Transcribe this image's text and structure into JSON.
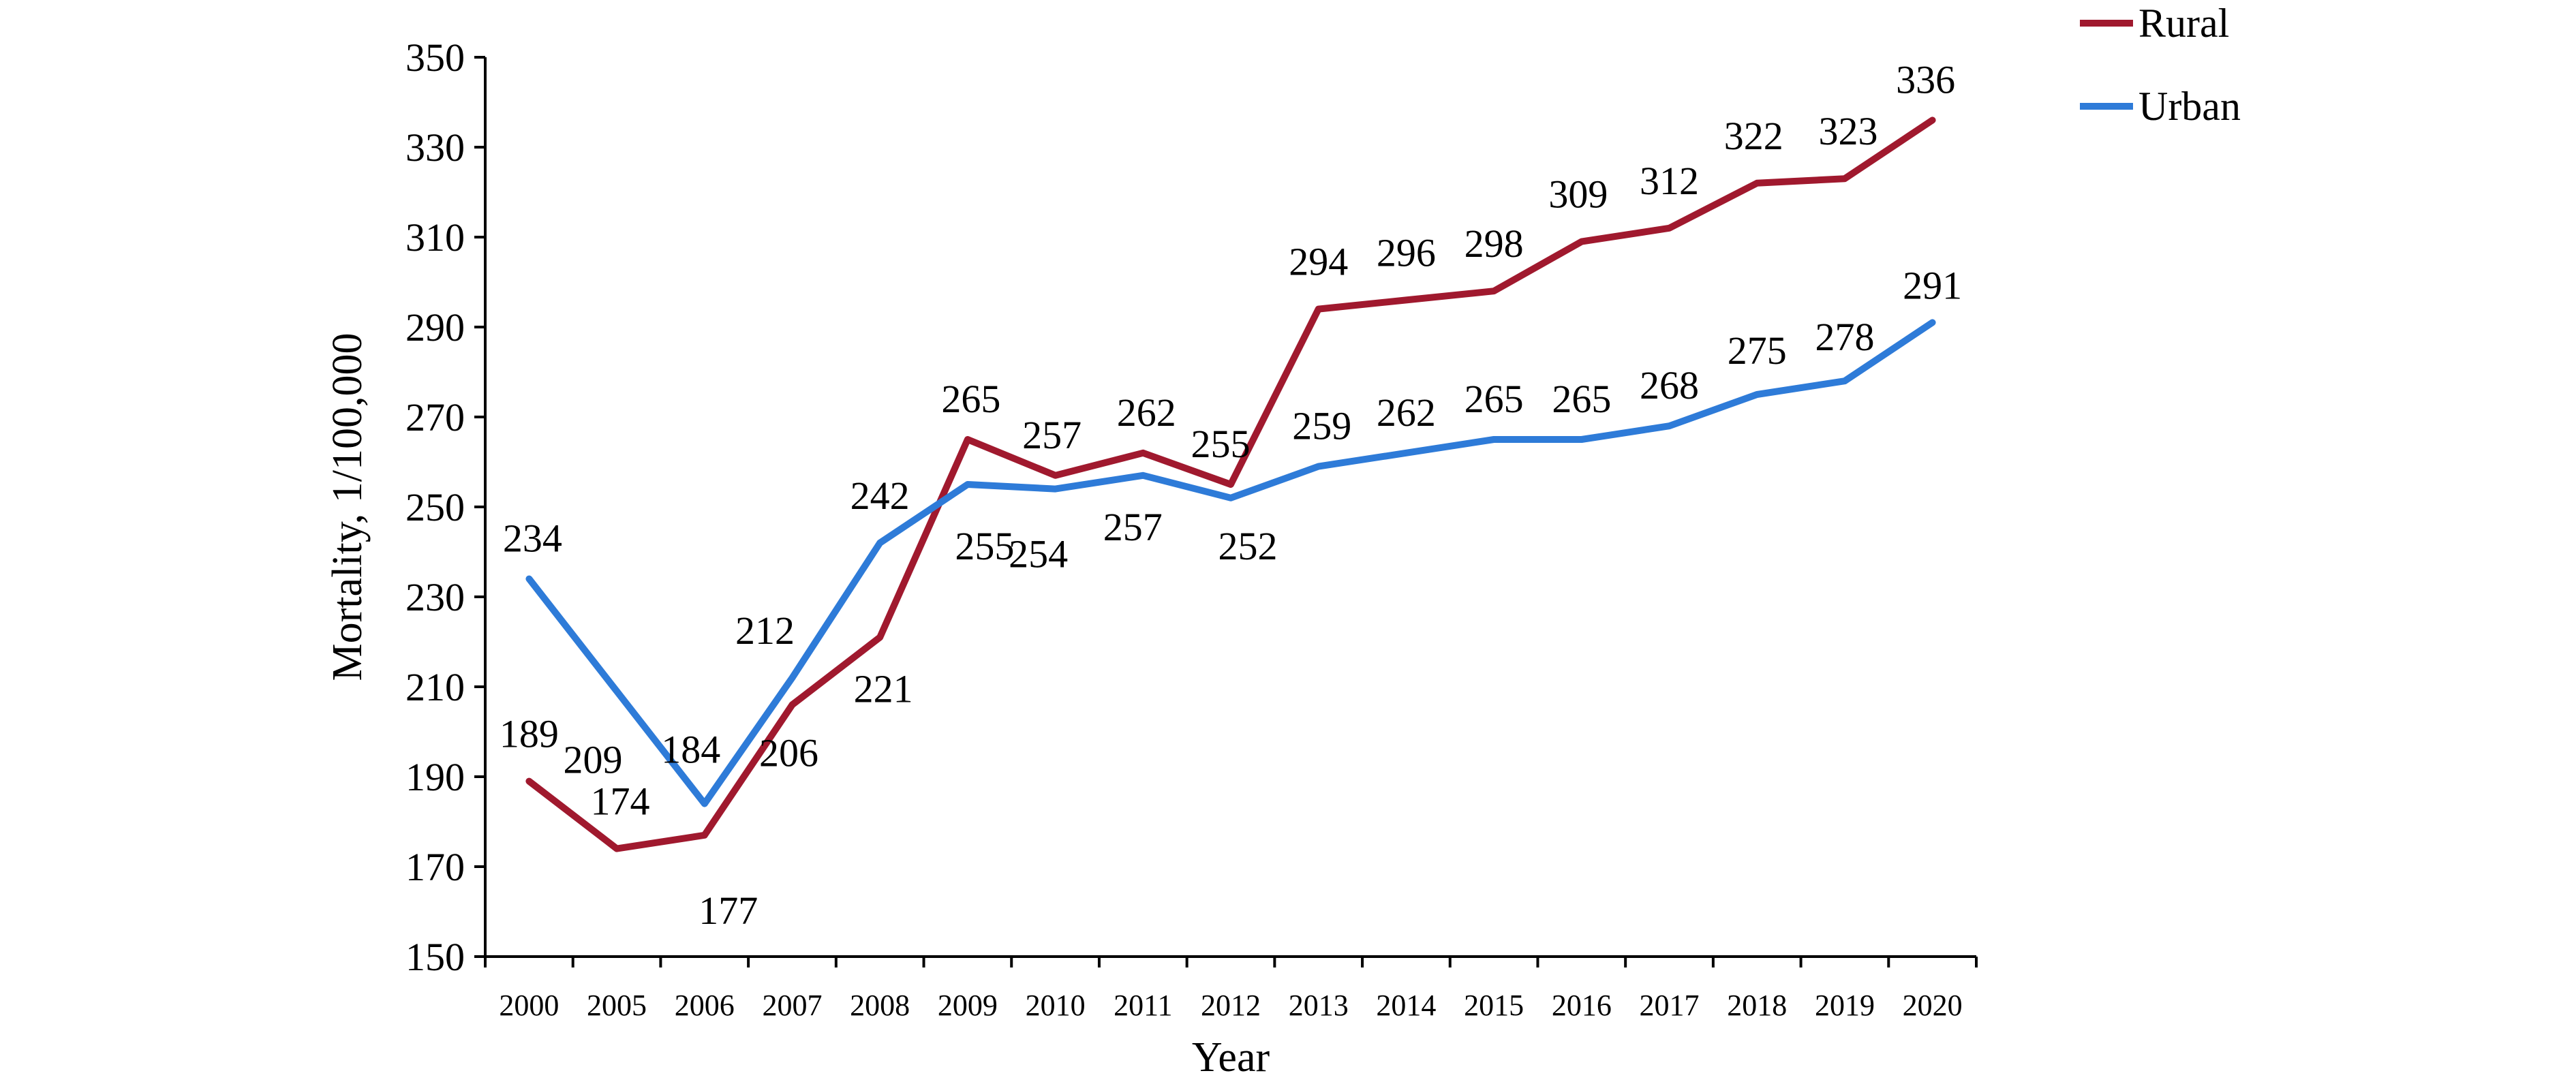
{
  "chart_data": {
    "type": "line",
    "title": "",
    "xlabel": "Year",
    "ylabel": "Mortality, 1/100,000",
    "categories": [
      "2000",
      "2005",
      "2006",
      "2007",
      "2008",
      "2009",
      "2010",
      "2011",
      "2012",
      "2013",
      "2014",
      "2015",
      "2016",
      "2017",
      "2018",
      "2019",
      "2020"
    ],
    "ylim": [
      150,
      350
    ],
    "yticks": [
      "150",
      "170",
      "190",
      "210",
      "230",
      "250",
      "270",
      "290",
      "310",
      "330",
      "350"
    ],
    "grid": false,
    "legend_position": "top-right",
    "series": [
      {
        "name": "Rural",
        "color": "#A0192E",
        "values": [
          189,
          174,
          177,
          206,
          221,
          265,
          257,
          262,
          255,
          294,
          296,
          298,
          309,
          312,
          322,
          323,
          336
        ],
        "labels": [
          "189",
          "174",
          "177",
          "206",
          "221",
          "265",
          "257",
          "262",
          "255",
          "294",
          "296",
          "298",
          "309",
          "312",
          "322",
          "323",
          "336"
        ]
      },
      {
        "name": "Urban",
        "color": "#2E7BD8",
        "values": [
          234,
          209,
          184,
          212,
          242,
          255,
          254,
          257,
          252,
          259,
          262,
          265,
          265,
          268,
          275,
          278,
          291
        ],
        "labels": [
          "234",
          "209",
          "184",
          "212",
          "242",
          "255",
          "254",
          "257",
          "252",
          "259",
          "262",
          "265",
          "265",
          "268",
          "275",
          "278",
          "291"
        ]
      }
    ]
  }
}
